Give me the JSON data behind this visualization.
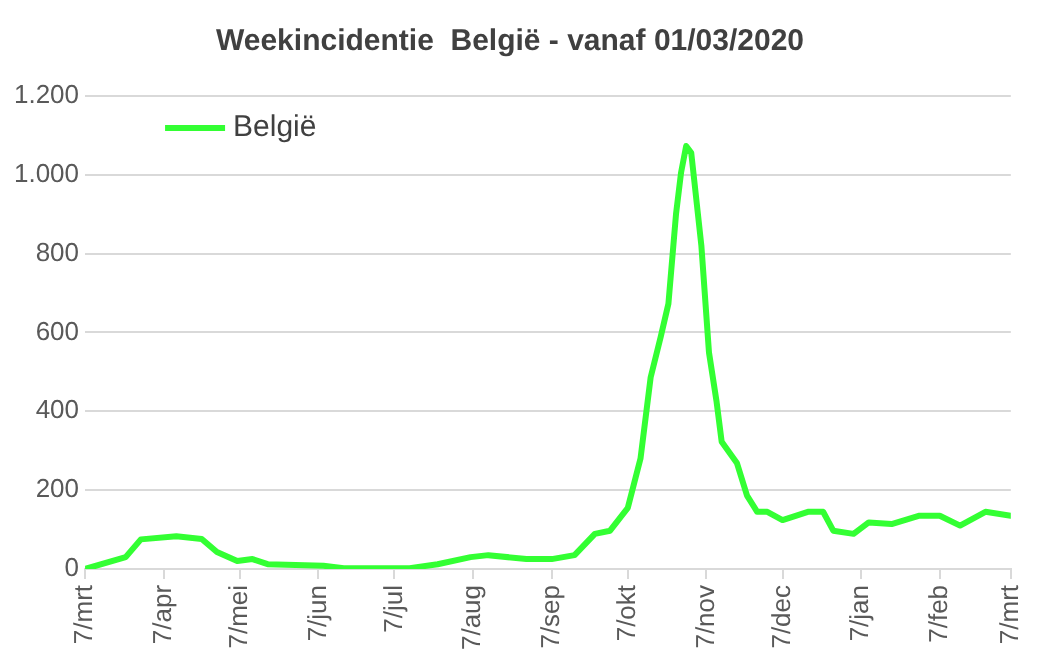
{
  "chart_data": {
    "type": "line",
    "title": "Weekincidentie  België - vanaf 01/03/2020",
    "x": [
      "2020-03-07",
      "2020-03-23",
      "2020-03-29",
      "2020-04-12",
      "2020-04-22",
      "2020-04-28",
      "2020-05-06",
      "2020-05-12",
      "2020-05-18",
      "2020-06-09",
      "2020-06-17",
      "2020-07-13",
      "2020-07-24",
      "2020-08-06",
      "2020-08-13",
      "2020-08-28",
      "2020-09-07",
      "2020-09-16",
      "2020-09-24",
      "2020-09-30",
      "2020-10-07",
      "2020-10-12",
      "2020-10-16",
      "2020-10-20",
      "2020-10-23",
      "2020-10-26",
      "2020-10-28",
      "2020-10-30",
      "2020-11-01",
      "2020-11-05",
      "2020-11-08",
      "2020-11-11",
      "2020-11-13",
      "2020-11-19",
      "2020-11-23",
      "2020-11-27",
      "2020-12-01",
      "2020-12-07",
      "2020-12-17",
      "2020-12-23",
      "2020-12-27",
      "2021-01-04",
      "2021-01-10",
      "2021-01-19",
      "2021-01-30",
      "2021-02-07",
      "2021-02-15",
      "2021-02-25",
      "2021-03-07"
    ],
    "series": [
      {
        "name": "België",
        "color": "#33ff33",
        "values": [
          0,
          30,
          75,
          83,
          76,
          43,
          20,
          25,
          12,
          8,
          2,
          2,
          12,
          30,
          35,
          25,
          25,
          35,
          89,
          97,
          155,
          280,
          486,
          590,
          673,
          900,
          1006,
          1073,
          1056,
          820,
          549,
          424,
          323,
          269,
          186,
          145,
          145,
          124,
          145,
          145,
          97,
          89,
          118,
          114,
          135,
          135,
          110,
          145,
          135
        ]
      }
    ],
    "xlim": [
      "2020-03-07",
      "2021-03-07"
    ],
    "xticks": [
      {
        "value": "2020-03-07",
        "label": "7/mrt"
      },
      {
        "value": "2020-04-07",
        "label": "7/apr"
      },
      {
        "value": "2020-05-07",
        "label": "7/mei"
      },
      {
        "value": "2020-06-07",
        "label": "7/jun"
      },
      {
        "value": "2020-07-07",
        "label": "7/jul"
      },
      {
        "value": "2020-08-07",
        "label": "7/aug"
      },
      {
        "value": "2020-09-07",
        "label": "7/sep"
      },
      {
        "value": "2020-10-07",
        "label": "7/okt"
      },
      {
        "value": "2020-11-07",
        "label": "7/nov"
      },
      {
        "value": "2020-12-07",
        "label": "7/dec"
      },
      {
        "value": "2021-01-07",
        "label": "7/jan"
      },
      {
        "value": "2021-02-07",
        "label": "7/feb"
      },
      {
        "value": "2021-03-07",
        "label": "7/mrt"
      }
    ],
    "ylim": [
      0,
      1200
    ],
    "yticks": [
      0,
      200,
      400,
      600,
      800,
      {
        "value": 1000,
        "label": "1.000"
      },
      {
        "value": 1200,
        "label": "1.200"
      }
    ],
    "grid": "y",
    "legend": "top left",
    "marker": "none",
    "line_style": "solid"
  }
}
